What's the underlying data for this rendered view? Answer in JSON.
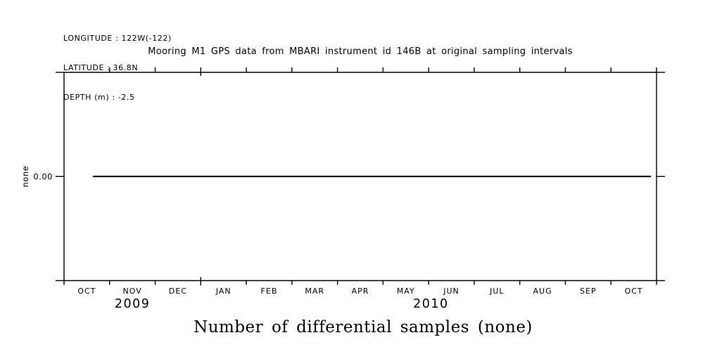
{
  "meta": {
    "background_color": "#ffffff",
    "foreground_color": "#000000"
  },
  "header": {
    "info_lines": [
      "LONGITUDE : 122W(-122)",
      "LATITUDE : 36.8N",
      "DEPTH (m) : -2.5"
    ]
  },
  "chart_data": {
    "type": "line",
    "title": "Mooring M1 GPS data from MBARI instrument id 146B at original sampling intervals",
    "caption": "Number of differential samples (none)",
    "xlabel": "",
    "ylabel": "none",
    "grid": false,
    "legend": "none",
    "x_axis": {
      "unit": "month",
      "months": [
        "OCT",
        "NOV",
        "DEC",
        "JAN",
        "FEB",
        "MAR",
        "APR",
        "MAY",
        "JUN",
        "JUL",
        "AUG",
        "SEP",
        "OCT"
      ],
      "major_tick_boundaries": [
        3
      ],
      "year_labels": [
        {
          "text": "2009",
          "month_offset": 1.5
        },
        {
          "text": "2010",
          "month_offset": 8.05
        }
      ]
    },
    "y_axis": {
      "label": "none",
      "ticks": [
        {
          "label": "0.00",
          "value": 0
        }
      ],
      "ylim": [
        -1,
        1
      ]
    },
    "series": [
      {
        "name": "differential samples",
        "color": "#000000",
        "points": [
          {
            "t": 0.63,
            "y": 0
          },
          {
            "t": 12.88,
            "y": 0
          }
        ]
      }
    ]
  }
}
